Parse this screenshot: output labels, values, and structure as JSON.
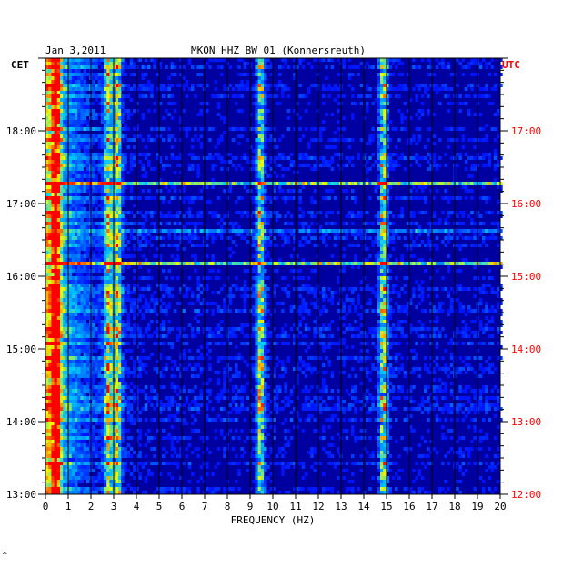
{
  "header": {
    "date": "Jan 3,2011",
    "station": "MKON HHZ BW 01 (Konnersreuth)",
    "left_timezone": "CET",
    "right_timezone": "UTC"
  },
  "footer_mark": "*",
  "chart_data": {
    "type": "heatmap",
    "title": "MKON HHZ BW 01 (Konnersreuth)",
    "xlabel": "FREQUENCY (HZ)",
    "ylabel_left": "CET",
    "ylabel_right": "UTC",
    "xlim": [
      0,
      20
    ],
    "ylim_cet_hours": [
      13,
      19
    ],
    "x_ticks": [
      "0",
      "1",
      "2",
      "3",
      "4",
      "5",
      "6",
      "7",
      "8",
      "9",
      "10",
      "11",
      "12",
      "13",
      "14",
      "15",
      "16",
      "17",
      "18",
      "19",
      "20"
    ],
    "y_ticks_left": [
      "13:00",
      "14:00",
      "15:00",
      "16:00",
      "17:00",
      "18:00"
    ],
    "y_ticks_right": [
      "12:00",
      "13:00",
      "14:00",
      "15:00",
      "16:00",
      "17:00"
    ],
    "colors": {
      "background": "#0000a0",
      "low": "#0000ff",
      "mid": "#00c8ff",
      "high": "#ffff00",
      "peak": "#ff0000",
      "utc_label": "#ff0000",
      "grid": "#000000"
    },
    "persistent_bands_hz": [
      {
        "freq": 0.4,
        "level": "high"
      },
      {
        "freq": 2.7,
        "level": "mid"
      },
      {
        "freq": 3.1,
        "level": "mid"
      },
      {
        "freq": 9.4,
        "level": "mid"
      },
      {
        "freq": 14.8,
        "level": "mid"
      }
    ],
    "broadband_events_cet": [
      "17:18",
      "16:40",
      "16:13"
    ]
  }
}
